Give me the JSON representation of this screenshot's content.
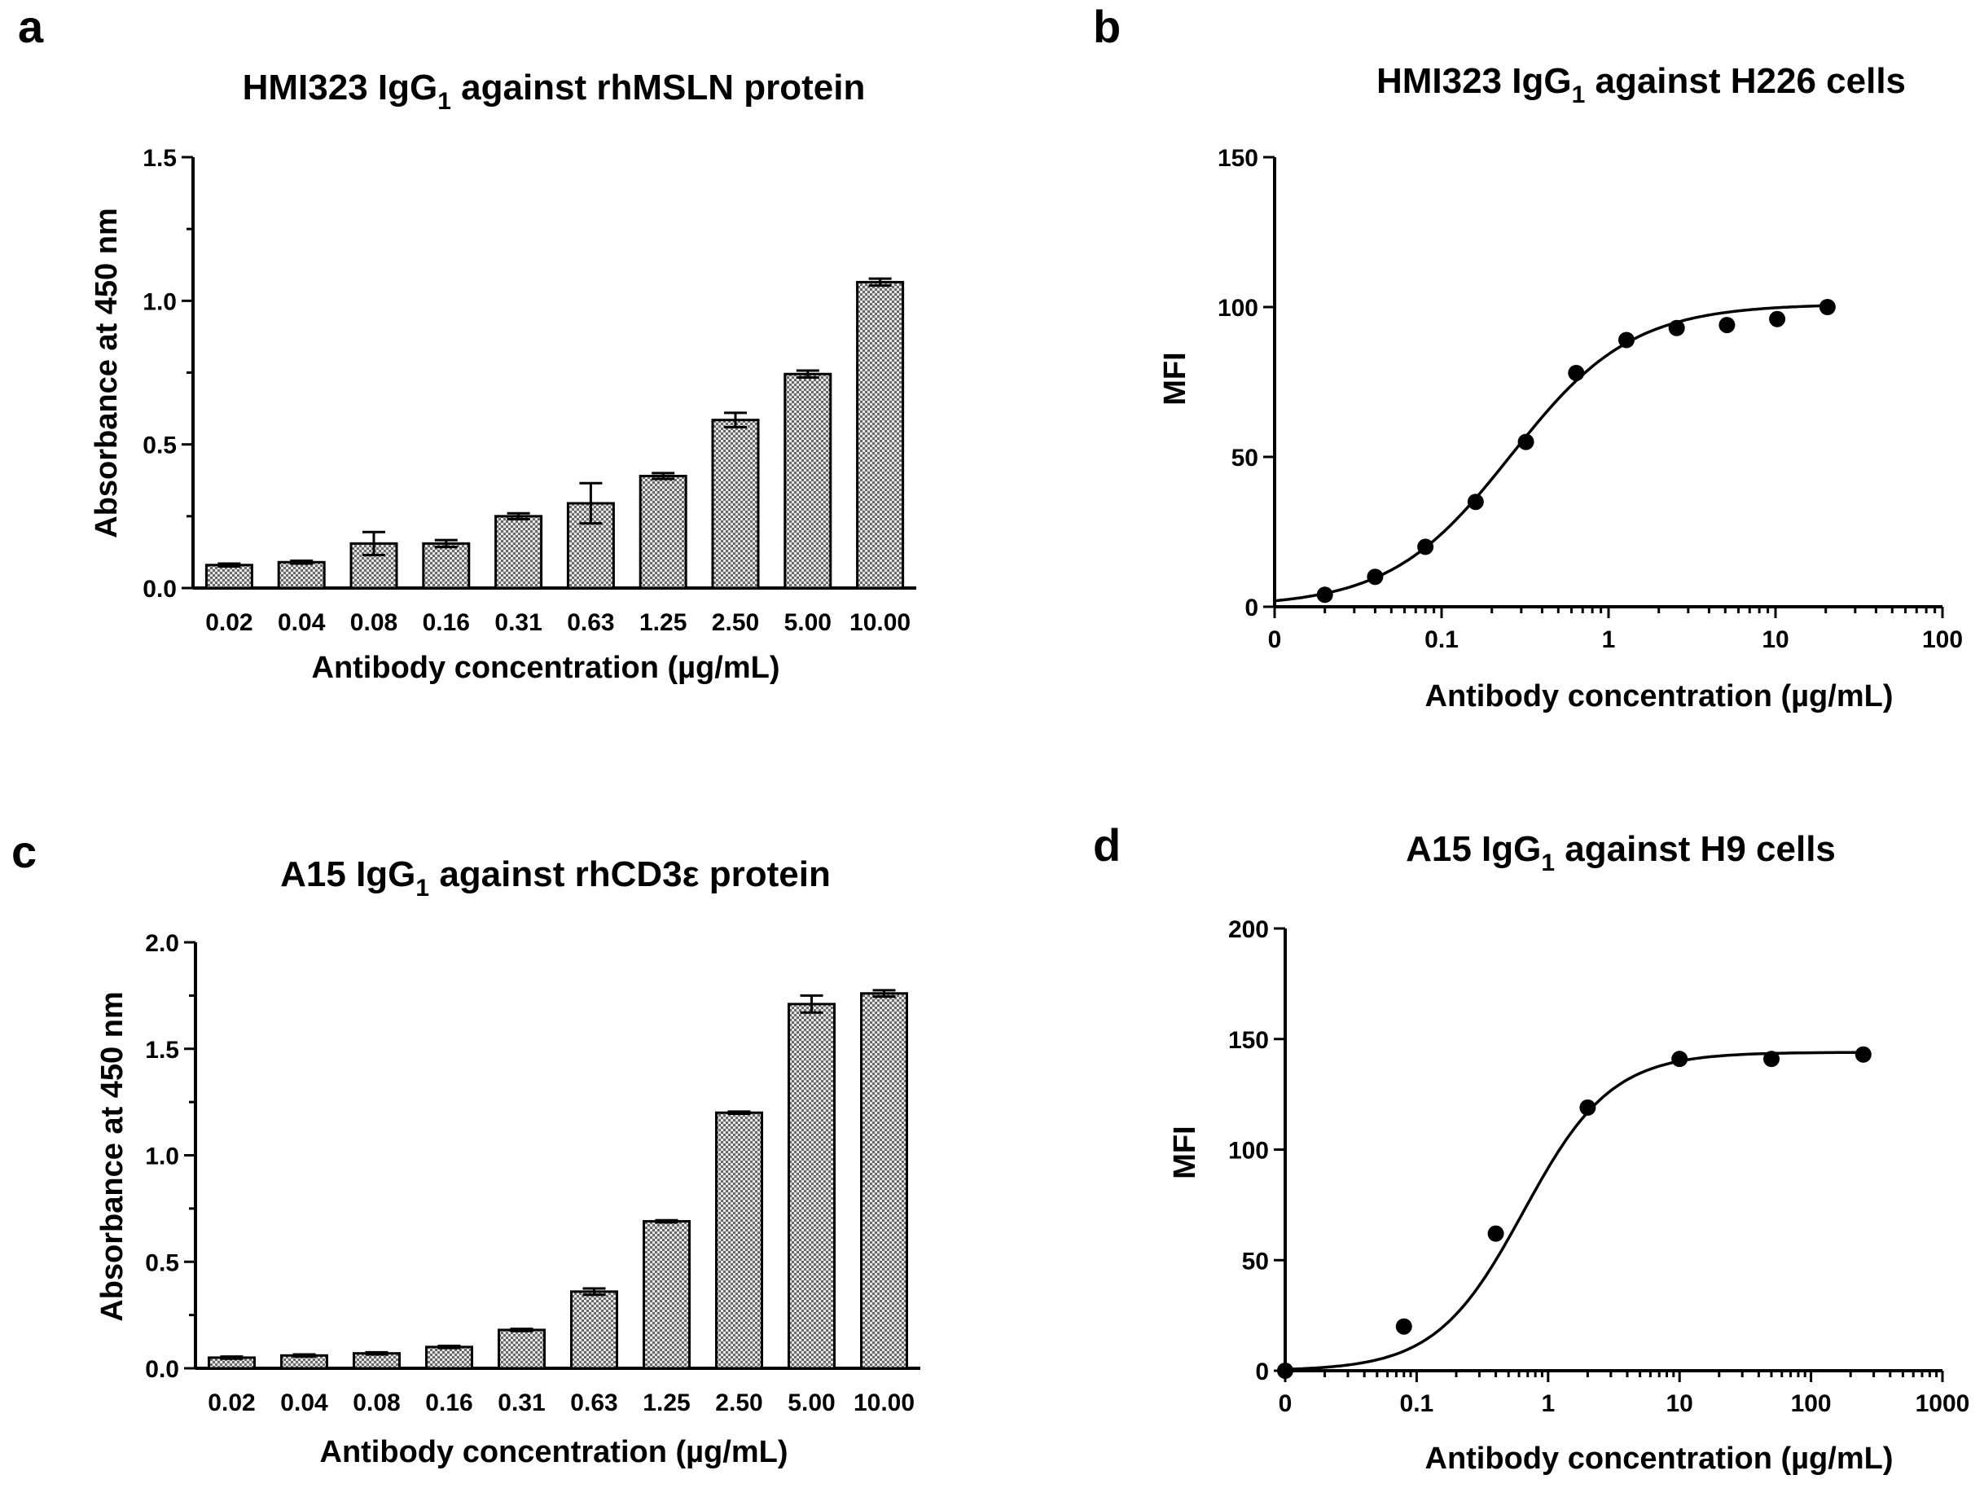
{
  "chart_data": [
    {
      "id": "a",
      "panel": "a",
      "type": "bar",
      "title": "HMI323 IgG",
      "title_sub": "1",
      "title_rest": " against rhMSLN protein",
      "xlabel": "Antibody concentration (µg/mL)",
      "ylabel": "Absorbance at 450 nm",
      "ylim": [
        0,
        1.5
      ],
      "yticks": [
        "0.0",
        "0.5",
        "1.0",
        "1.5"
      ],
      "categories": [
        "0.02",
        "0.04",
        "0.08",
        "0.16",
        "0.31",
        "0.63",
        "1.25",
        "2.50",
        "5.00",
        "10.00"
      ],
      "values": [
        0.08,
        0.09,
        0.155,
        0.155,
        0.25,
        0.295,
        0.39,
        0.585,
        0.745,
        1.065
      ],
      "errors": [
        0.005,
        0.005,
        0.04,
        0.012,
        0.01,
        0.07,
        0.01,
        0.025,
        0.012,
        0.012
      ]
    },
    {
      "id": "b",
      "panel": "b",
      "type": "scatter",
      "title": "HMI323 IgG",
      "title_sub": "1",
      "title_rest": " against H226 cells",
      "xlabel": "Antibody concentration (µg/mL)",
      "ylabel": "MFI",
      "xscale": "log",
      "xlim": [
        0.01,
        100
      ],
      "ylim": [
        0,
        150
      ],
      "yticks": [
        "0",
        "50",
        "100",
        "150"
      ],
      "xticks": [
        "0",
        "0.1",
        "1",
        "10",
        "100"
      ],
      "points_x": [
        0.02,
        0.04,
        0.08,
        0.16,
        0.32,
        0.64,
        1.28,
        2.56,
        5.12,
        10.24,
        20.48
      ],
      "points_y": [
        4,
        10,
        20,
        35,
        55,
        78,
        89,
        93,
        94,
        96,
        100
      ],
      "fit": {
        "bottom": 0,
        "top": 101,
        "ec50": 0.26,
        "hill": 1.2
      }
    },
    {
      "id": "c",
      "panel": "c",
      "type": "bar",
      "title": "A15 IgG",
      "title_sub": "1",
      "title_rest": " against rhCD3ε protein",
      "xlabel": "Antibody concentration (µg/mL)",
      "ylabel": "Absorbance at 450 nm",
      "ylim": [
        0,
        2.0
      ],
      "yticks": [
        "0.0",
        "0.5",
        "1.0",
        "1.5",
        "2.0"
      ],
      "categories": [
        "0.02",
        "0.04",
        "0.08",
        "0.16",
        "0.31",
        "0.63",
        "1.25",
        "2.50",
        "5.00",
        "10.00"
      ],
      "values": [
        0.05,
        0.06,
        0.07,
        0.1,
        0.18,
        0.36,
        0.69,
        1.2,
        1.71,
        1.76
      ],
      "errors": [
        0.005,
        0.005,
        0.005,
        0.005,
        0.005,
        0.015,
        0.005,
        0.005,
        0.04,
        0.015
      ]
    },
    {
      "id": "d",
      "panel": "d",
      "type": "scatter",
      "title": "A15 IgG",
      "title_sub": "1",
      "title_rest": " against H9 cells",
      "xlabel": "Antibody concentration (µg/mL)",
      "ylabel": "MFI",
      "xscale": "log",
      "xlim": [
        0.01,
        1000
      ],
      "ylim": [
        0,
        200
      ],
      "yticks": [
        "0",
        "50",
        "100",
        "150",
        "200"
      ],
      "xticks": [
        "0",
        "0.1",
        "1",
        "10",
        "100",
        "1000"
      ],
      "points_x": [
        0.01,
        0.08,
        0.4,
        2,
        10,
        50,
        250
      ],
      "points_y": [
        0,
        20,
        62,
        119,
        141,
        141,
        143
      ],
      "fit": {
        "bottom": 0,
        "top": 144,
        "ec50": 0.65,
        "hill": 1.3
      }
    }
  ]
}
